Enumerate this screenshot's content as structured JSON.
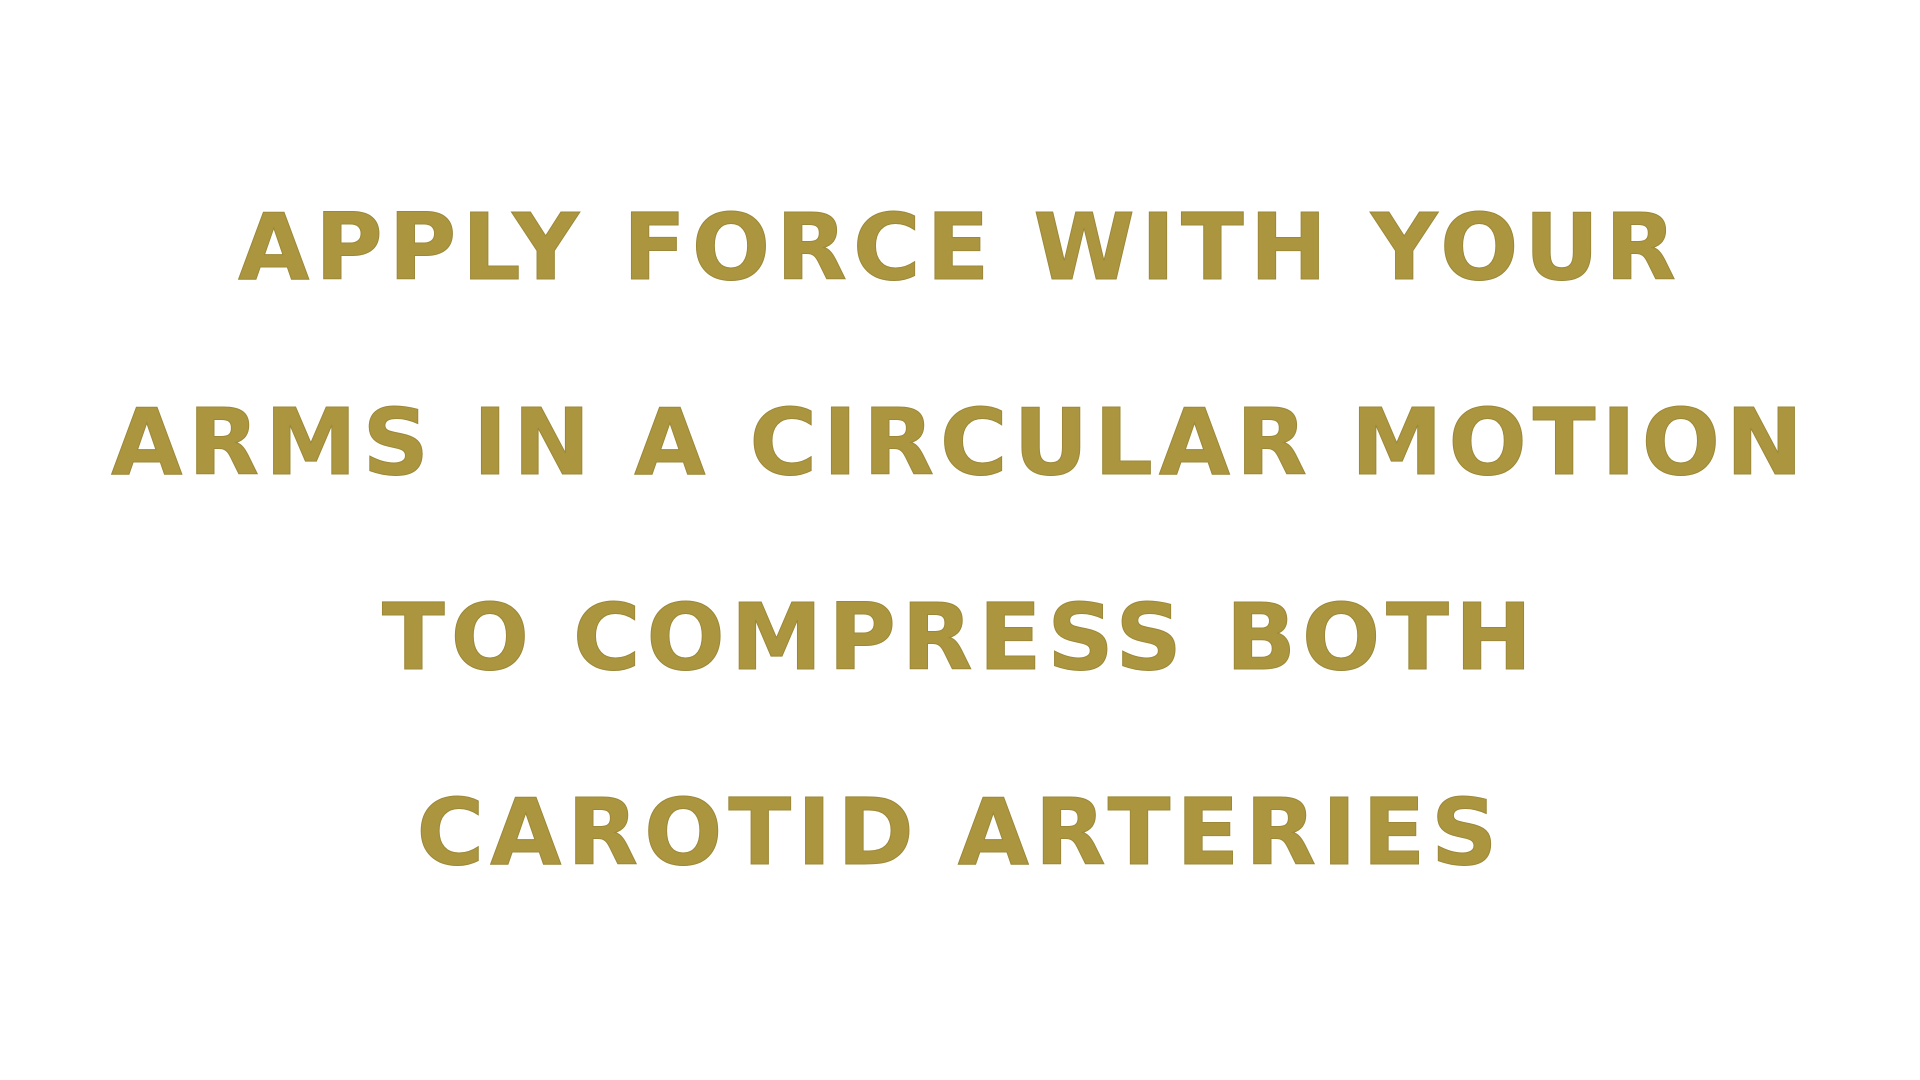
{
  "caption": {
    "lines": [
      "apply force with your",
      "arms in a circular motion",
      "to compress both",
      "carotid arteries"
    ],
    "text_color": "#ab963f",
    "background_color": "#ffffff"
  }
}
